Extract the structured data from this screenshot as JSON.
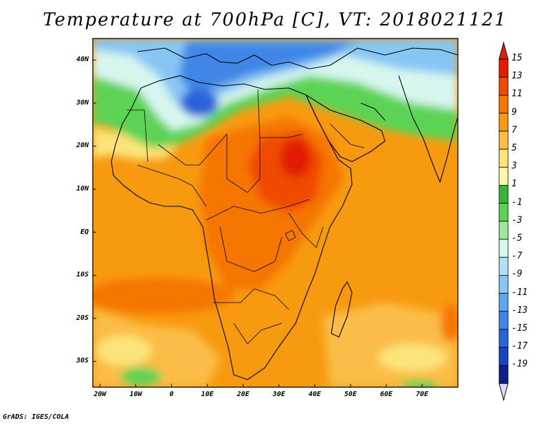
{
  "title": "Temperature at 700hPa [C], VT: 2018021121",
  "credit": "GrADS: IGES/COLA",
  "map": {
    "lon_range": [
      -22,
      80
    ],
    "lat_range": [
      -36,
      45
    ],
    "y_ticks": [
      {
        "label": "40N",
        "lat": 40
      },
      {
        "label": "30N",
        "lat": 30
      },
      {
        "label": "20N",
        "lat": 20
      },
      {
        "label": "10N",
        "lat": 10
      },
      {
        "label": "EQ",
        "lat": 0
      },
      {
        "label": "10S",
        "lat": -10
      },
      {
        "label": "20S",
        "lat": -20
      },
      {
        "label": "30S",
        "lat": -30
      }
    ],
    "x_ticks": [
      {
        "label": "20W",
        "lon": -20
      },
      {
        "label": "10W",
        "lon": -10
      },
      {
        "label": "0",
        "lon": 0
      },
      {
        "label": "10E",
        "lon": 10
      },
      {
        "label": "20E",
        "lon": 20
      },
      {
        "label": "30E",
        "lon": 30
      },
      {
        "label": "40E",
        "lon": 40
      },
      {
        "label": "50E",
        "lon": 50
      },
      {
        "label": "60E",
        "lon": 60
      },
      {
        "label": "70E",
        "lon": 70
      }
    ]
  },
  "colorbar": {
    "levels": [
      {
        "label": "15",
        "color": "#e11f00"
      },
      {
        "label": "13",
        "color": "#f04a00"
      },
      {
        "label": "11",
        "color": "#f57600"
      },
      {
        "label": "9",
        "color": "#f89a10"
      },
      {
        "label": "7",
        "color": "#fbbd46"
      },
      {
        "label": "5",
        "color": "#fde47a"
      },
      {
        "label": "3",
        "color": "#fff6a8"
      },
      {
        "label": "1",
        "color": "#37b536"
      },
      {
        "label": "-1",
        "color": "#5cd355"
      },
      {
        "label": "-3",
        "color": "#9de99a"
      },
      {
        "label": "-5",
        "color": "#d7f6ee"
      },
      {
        "label": "-7",
        "color": "#aee0f8"
      },
      {
        "label": "-9",
        "color": "#87c6f4"
      },
      {
        "label": "-11",
        "color": "#5ea6ee"
      },
      {
        "label": "-13",
        "color": "#3f86e6"
      },
      {
        "label": "-15",
        "color": "#2a64da"
      },
      {
        "label": "-17",
        "color": "#1b43c0"
      },
      {
        "label": "-19",
        "color": "#0e1f8a"
      }
    ],
    "top_color": "#e11f00",
    "bottom_color": "#e0d9f5"
  }
}
